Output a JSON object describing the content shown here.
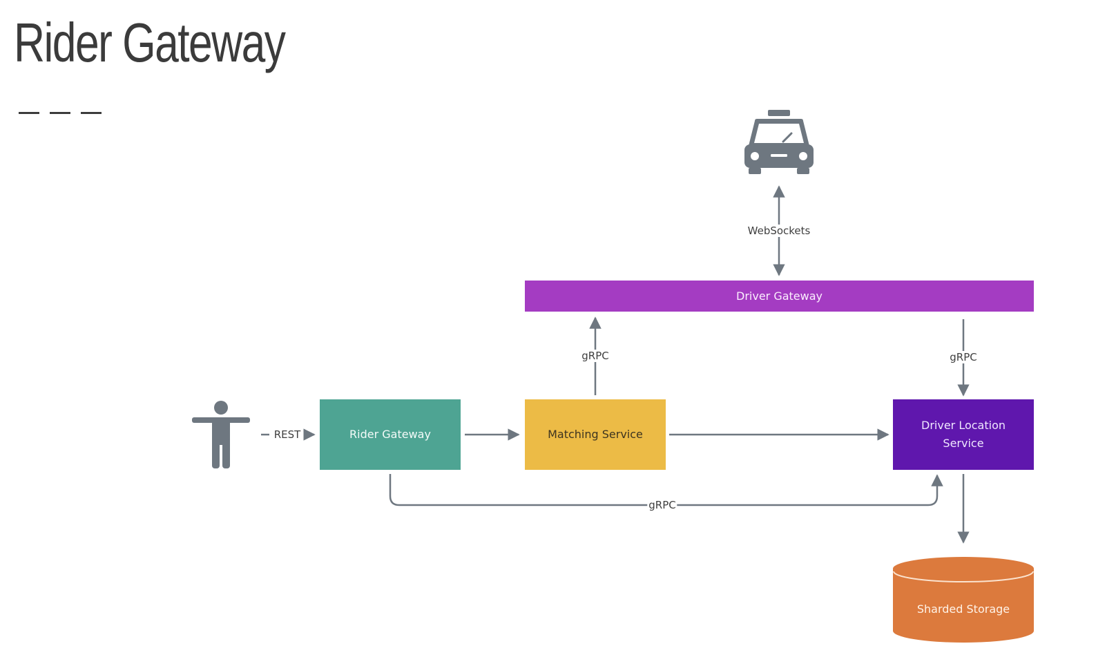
{
  "title": "Rider Gateway",
  "nodes": {
    "rider_gateway": "Rider Gateway",
    "matching_service": "Matching Service",
    "driver_location_service": "Driver Location Service",
    "driver_gateway": "Driver Gateway",
    "sharded_storage": "Sharded Storage"
  },
  "edges": {
    "rest": "REST",
    "websockets": "WebSockets",
    "grpc_matching": "gRPC",
    "grpc_driver_location": "gRPC",
    "grpc_rider": "gRPC"
  },
  "icons": {
    "rider": "person-icon",
    "driver": "taxi-icon"
  },
  "colors": {
    "rider_gateway": "#4ea493",
    "matching_service": "#ecbb46",
    "driver_location_service": "#5f17ad",
    "driver_gateway": "#a43cc2",
    "sharded_storage": "#dc7a3d",
    "connector": "#6e7780",
    "icon": "#6e7780"
  }
}
